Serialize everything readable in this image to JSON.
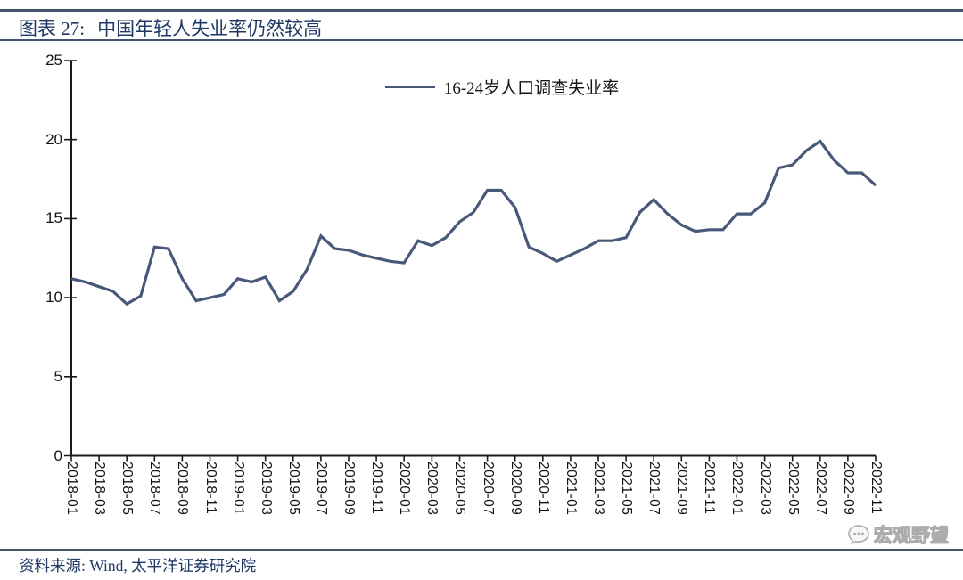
{
  "header": {
    "figure_label": "图表 27:",
    "title": "中国年轻人失业率仍然较高"
  },
  "chart_data": {
    "type": "line",
    "title": "中国年轻人失业率仍然较高",
    "legend": [
      "16-24岁人口调查失业率"
    ],
    "legend_position": "top-center",
    "line_color": "#485878",
    "ylim": [
      0,
      25
    ],
    "yticks": [
      0,
      5,
      10,
      15,
      20,
      25
    ],
    "xtick_every": 2,
    "grid": false,
    "x": [
      "2018-01",
      "2018-02",
      "2018-03",
      "2018-04",
      "2018-05",
      "2018-06",
      "2018-07",
      "2018-08",
      "2018-09",
      "2018-10",
      "2018-11",
      "2018-12",
      "2019-01",
      "2019-02",
      "2019-03",
      "2019-04",
      "2019-05",
      "2019-06",
      "2019-07",
      "2019-08",
      "2019-09",
      "2019-10",
      "2019-11",
      "2019-12",
      "2020-01",
      "2020-02",
      "2020-03",
      "2020-04",
      "2020-05",
      "2020-06",
      "2020-07",
      "2020-08",
      "2020-09",
      "2020-10",
      "2020-11",
      "2020-12",
      "2021-01",
      "2021-02",
      "2021-03",
      "2021-04",
      "2021-05",
      "2021-06",
      "2021-07",
      "2021-08",
      "2021-09",
      "2021-10",
      "2021-11",
      "2021-12",
      "2022-01",
      "2022-02",
      "2022-03",
      "2022-04",
      "2022-05",
      "2022-06",
      "2022-07",
      "2022-08",
      "2022-09",
      "2022-10",
      "2022-11"
    ],
    "series": [
      {
        "name": "16-24岁人口调查失业率",
        "values": [
          11.2,
          11.0,
          10.7,
          10.4,
          9.6,
          10.1,
          13.2,
          13.1,
          11.2,
          9.8,
          10.0,
          10.2,
          11.2,
          11.0,
          11.3,
          9.8,
          10.4,
          11.8,
          13.9,
          13.1,
          13.0,
          12.7,
          12.5,
          12.3,
          12.2,
          13.6,
          13.3,
          13.8,
          14.8,
          15.4,
          16.8,
          16.8,
          15.7,
          13.2,
          12.8,
          12.3,
          12.7,
          13.1,
          13.6,
          13.6,
          13.8,
          15.4,
          16.2,
          15.3,
          14.6,
          14.2,
          14.3,
          14.3,
          15.3,
          15.3,
          16.0,
          18.2,
          18.4,
          19.3,
          19.9,
          18.7,
          17.9,
          17.9,
          17.1
        ]
      }
    ]
  },
  "footer": {
    "source": "资料来源: Wind, 太平洋证券研究院"
  },
  "watermark": {
    "text": "宏观野望"
  }
}
